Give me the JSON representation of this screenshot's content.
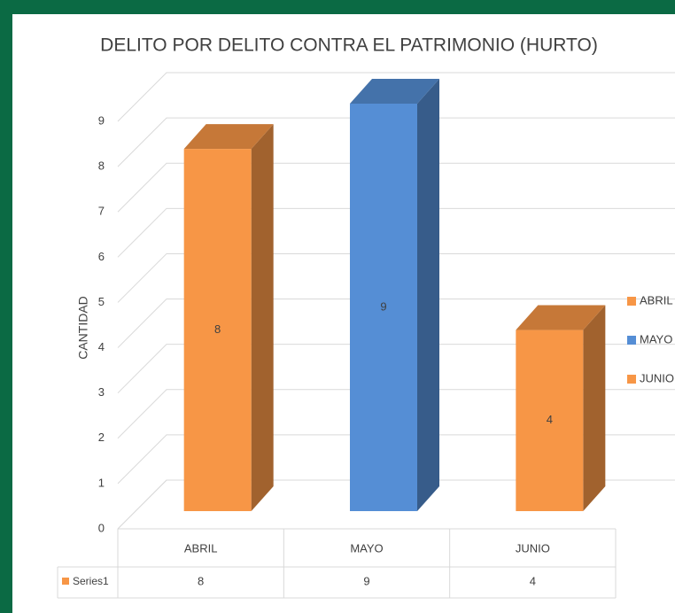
{
  "chart_data": {
    "type": "bar3d",
    "title": "DELITO POR DELITO CONTRA EL PATRIMONIO (HURTO)",
    "y_label": "CANTIDAD",
    "categories": [
      "ABRIL",
      "MAYO",
      "JUNIO"
    ],
    "series": [
      {
        "name": "Series1",
        "values": [
          8,
          9,
          4
        ],
        "colors": [
          "#f79646",
          "#558ed5",
          "#f79646"
        ]
      }
    ],
    "ylim": [
      0,
      9
    ],
    "yticks": [
      0,
      1,
      2,
      3,
      4,
      5,
      6,
      7,
      8,
      9
    ],
    "grid": true,
    "legend": "right",
    "data_table": true
  }
}
